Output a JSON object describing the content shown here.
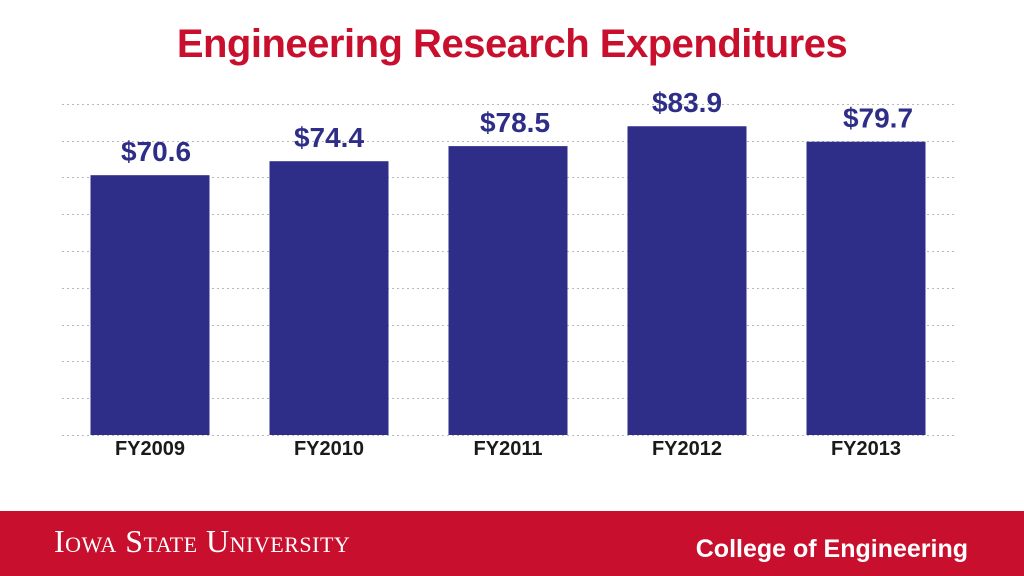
{
  "chart_data": {
    "type": "bar",
    "title": "Engineering Research Expenditures",
    "xlabel": "",
    "ylabel": "",
    "categories": [
      "FY2009",
      "FY2010",
      "FY2011",
      "FY2012",
      "FY2013"
    ],
    "values": [
      70.6,
      74.4,
      78.5,
      83.9,
      79.7
    ],
    "data_labels": [
      "$70.6",
      "$74.4",
      "$78.5",
      "$83.9",
      "$79.7"
    ],
    "ylim": [
      0,
      90
    ],
    "grid": true,
    "legend": "none",
    "colors": {
      "bar": "#2e2d88",
      "title": "#c8102e"
    }
  },
  "footer": {
    "university": "Iowa State University",
    "college": "College of Engineering",
    "background": "#c8102e"
  }
}
